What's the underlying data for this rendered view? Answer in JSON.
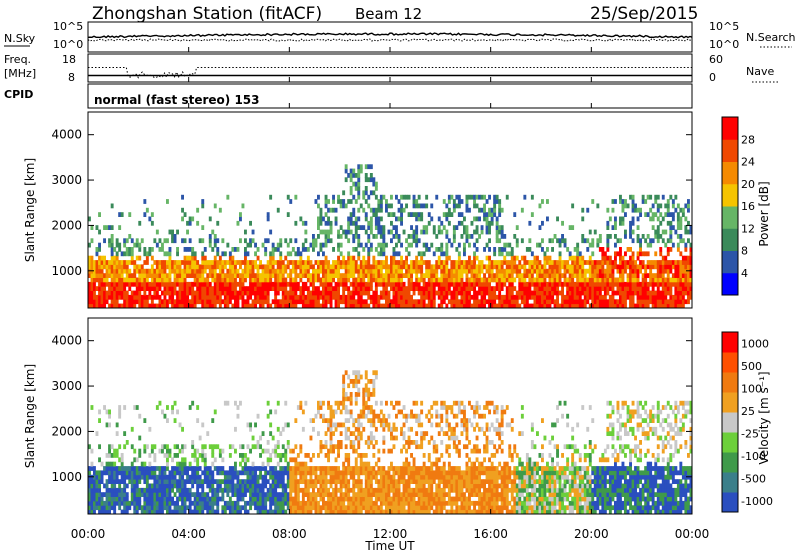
{
  "header": {
    "station": "Zhongshan Station (fitACF)",
    "beam": "Beam 12",
    "date": "25/Sep/2015"
  },
  "noise_panel": {
    "left_label": "N.Sky",
    "left_ticks": [
      "10^5",
      "10^0"
    ],
    "right_label": "N.Search",
    "right_ticks": [
      "10^5",
      "10^0"
    ]
  },
  "freq_panel": {
    "left_label_line1": "Freq.",
    "left_label_line2": "[MHz]",
    "left_ticks": [
      "18",
      "8"
    ],
    "right_label": "Nave",
    "right_ticks": [
      "60",
      "0"
    ]
  },
  "cpid_panel": {
    "label": "CPID",
    "mode_text": "normal (fast stereo) 153"
  },
  "chart_data": [
    {
      "type": "heatmap",
      "name": "power",
      "ylabel": "Slant Range [km]",
      "xlabel": "Time UT",
      "xlim": [
        0,
        24
      ],
      "ylim": [
        180,
        4500
      ],
      "yticks": [
        "1000",
        "2000",
        "3000",
        "4000"
      ],
      "colorbar_label": "Power [dB]",
      "colorbar_ticks": [
        "4",
        "8",
        "12",
        "16",
        "20",
        "24",
        "28"
      ],
      "colors": [
        "#0000ff",
        "#2c55a8",
        "#3a8a5a",
        "#66b566",
        "#f5c400",
        "#f58a00",
        "#f04800",
        "#ff0000"
      ]
    },
    {
      "type": "heatmap",
      "name": "velocity",
      "ylabel": "Slant Range [km]",
      "xlabel": "Time UT",
      "xlim": [
        0,
        24
      ],
      "ylim": [
        180,
        4500
      ],
      "yticks": [
        "1000",
        "2000",
        "3000",
        "4000"
      ],
      "colorbar_label": "Velocity [m s⁻¹]",
      "colorbar_ticks": [
        "1000",
        "500",
        "100",
        "25",
        "-25",
        "-100",
        "-500",
        "-1000"
      ],
      "colors": [
        "#2a4fbf",
        "#3a7f8a",
        "#3f9a4a",
        "#6ccf3a",
        "#c8c8c8",
        "#f0a020",
        "#f07a10",
        "#ff5000",
        "#ff0000"
      ]
    }
  ],
  "time_axis": {
    "ticks": [
      "00:00",
      "04:00",
      "08:00",
      "12:00",
      "16:00",
      "20:00",
      "00:00"
    ],
    "label": "Time UT"
  }
}
